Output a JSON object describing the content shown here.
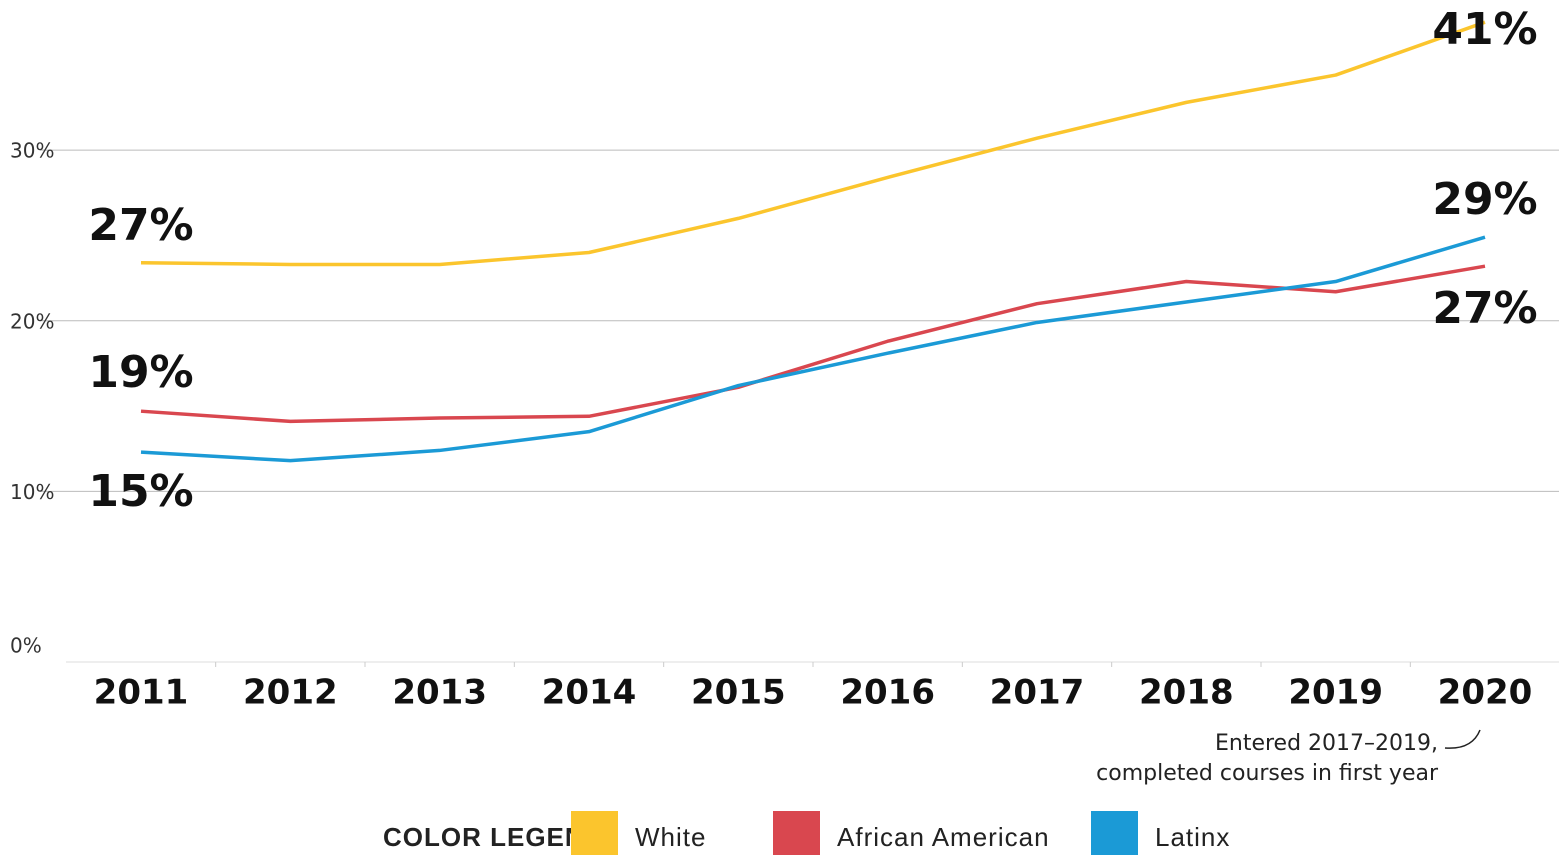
{
  "chart_data": {
    "type": "line",
    "categories": [
      "2011",
      "2012",
      "2013",
      "2014",
      "2015",
      "2016",
      "2017",
      "2018",
      "2019",
      "2020"
    ],
    "series": [
      {
        "name": "White",
        "color": "#fbc52d",
        "values": [
          23.4,
          23.3,
          23.3,
          24.0,
          26.0,
          28.4,
          30.7,
          32.8,
          34.4,
          37.5
        ]
      },
      {
        "name": "African American",
        "color": "#d9474f",
        "values": [
          14.7,
          14.1,
          14.3,
          14.4,
          16.1,
          18.8,
          21.0,
          22.3,
          21.7,
          23.2
        ]
      },
      {
        "name": "Latinx",
        "color": "#1b9ad6",
        "values": [
          12.3,
          11.8,
          12.4,
          13.5,
          16.2,
          18.1,
          19.9,
          21.1,
          22.3,
          24.9
        ]
      }
    ],
    "ylim": [
      0,
      38.8
    ],
    "yticks": [
      {
        "value": 0,
        "label": "0%"
      },
      {
        "value": 10,
        "label": "10%"
      },
      {
        "value": 20,
        "label": "20%"
      },
      {
        "value": 30,
        "label": "30%"
      }
    ],
    "grid": true,
    "annotations": [
      "27%",
      "19%",
      "15%",
      "41%",
      "29%",
      "27%"
    ],
    "note": [
      "Entered 2017–2019,",
      "completed courses in first year"
    ],
    "legend_title": "COLOR LEGEND",
    "legend": "bottom"
  }
}
